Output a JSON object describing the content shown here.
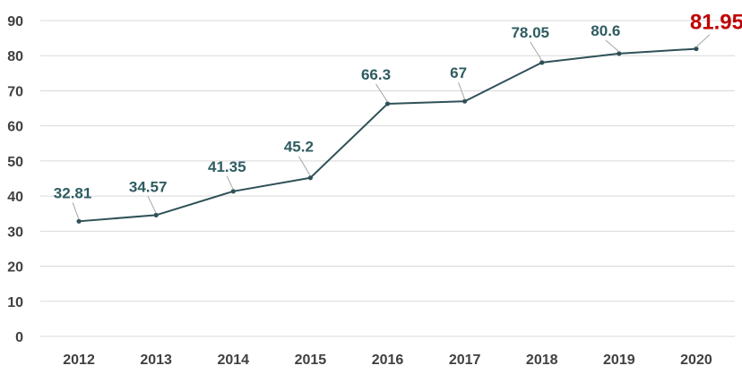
{
  "chart_data": {
    "type": "line",
    "title": "",
    "xlabel": "",
    "ylabel": "",
    "categories": [
      "2012",
      "2013",
      "2014",
      "2015",
      "2016",
      "2017",
      "2018",
      "2019",
      "2020"
    ],
    "series": [
      {
        "values": [
          32.81,
          34.57,
          41.35,
          45.2,
          66.3,
          67,
          78.05,
          80.6,
          81.95
        ]
      }
    ],
    "data_labels": [
      "32.81",
      "34.57",
      "41.35",
      "45.2",
      "66.3",
      "67",
      "78.05",
      "80.6",
      "81.95"
    ],
    "highlighted_label": "81.95",
    "ylim": [
      0,
      90
    ],
    "yticks": [
      0,
      10,
      20,
      30,
      40,
      50,
      60,
      70,
      80,
      90
    ],
    "ytick_labels": [
      "0",
      "10",
      "20",
      "30",
      "40",
      "50",
      "60",
      "70",
      "80",
      "90"
    ],
    "grid": true,
    "legend": "none",
    "colors": {
      "line": "#2e5157",
      "label": "#2e5c61",
      "highlight": "#c00000",
      "grid": "#d9d9d9",
      "axis_text": "#404040",
      "leader": "#a6a6a6"
    }
  }
}
